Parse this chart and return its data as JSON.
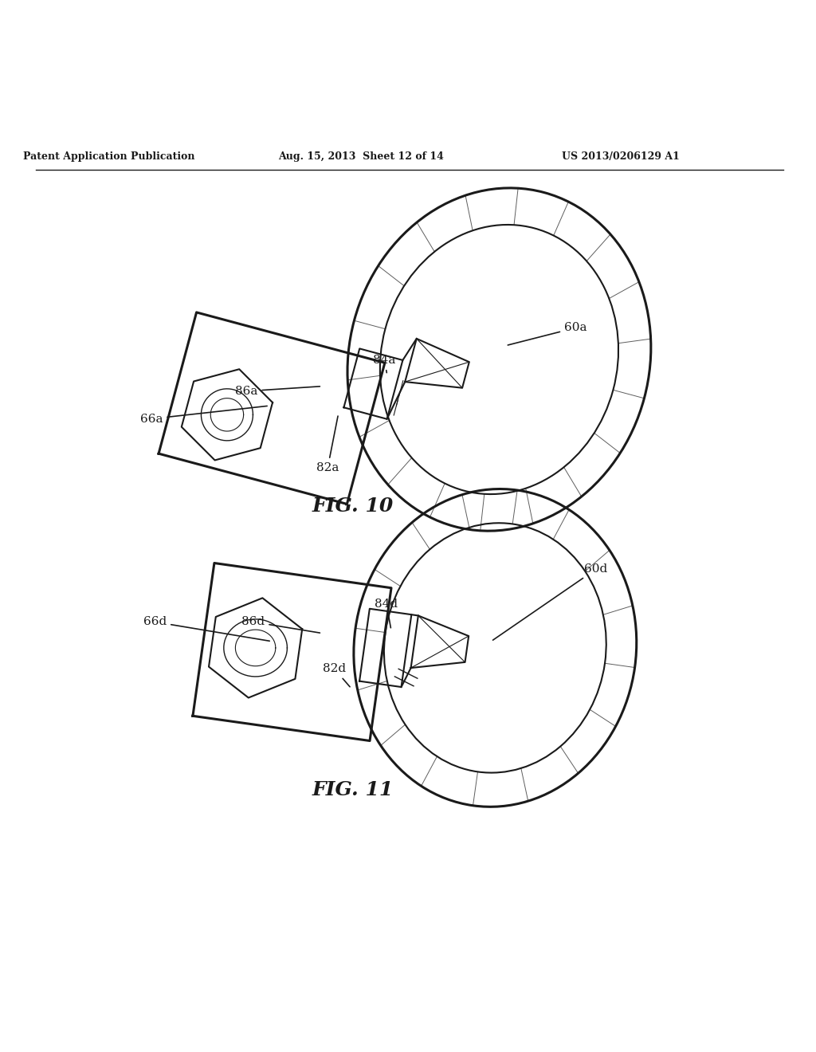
{
  "header_left": "Patent Application Publication",
  "header_mid": "Aug. 15, 2013  Sheet 12 of 14",
  "header_right": "US 2013/0206129 A1",
  "fig10_title": "FIG. 10",
  "fig11_title": "FIG. 11",
  "bg_color": "#ffffff",
  "line_color": "#1a1a1a"
}
